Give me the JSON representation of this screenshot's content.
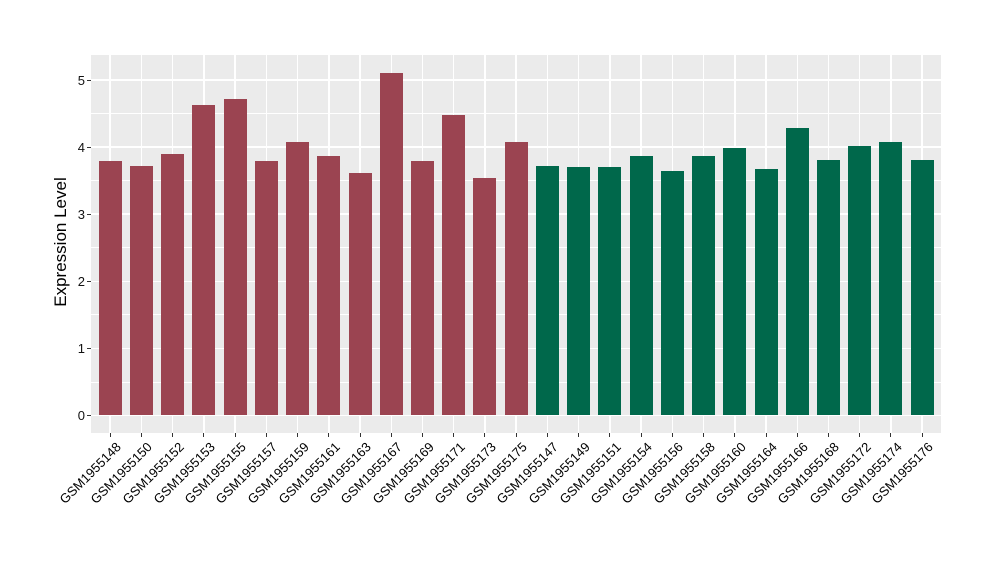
{
  "figure": {
    "panel_background": "#EBEBEB",
    "grid_color": "#FFFFFF",
    "tick_color": "#333333",
    "background": "#FFFFFF"
  },
  "chart_data": {
    "type": "bar",
    "title": "",
    "xlabel": "",
    "ylabel": "Expression Level",
    "ylim": [
      0,
      5.37
    ],
    "yticks": [
      0,
      1,
      2,
      3,
      4,
      5
    ],
    "grid": true,
    "legend": "none",
    "groups": [
      {
        "name": "group-1",
        "color": "#9B4451",
        "bars": [
          {
            "label": "GSM1955148",
            "value": 3.79
          },
          {
            "label": "GSM1955150",
            "value": 3.72
          },
          {
            "label": "GSM1955152",
            "value": 3.89
          },
          {
            "label": "GSM1955153",
            "value": 4.62
          },
          {
            "label": "GSM1955155",
            "value": 4.71
          },
          {
            "label": "GSM1955157",
            "value": 3.8
          },
          {
            "label": "GSM1955159",
            "value": 4.07
          },
          {
            "label": "GSM1955161",
            "value": 3.86
          },
          {
            "label": "GSM1955163",
            "value": 3.62
          },
          {
            "label": "GSM1955167",
            "value": 5.11
          },
          {
            "label": "GSM1955169",
            "value": 3.79
          },
          {
            "label": "GSM1955171",
            "value": 4.48
          },
          {
            "label": "GSM1955173",
            "value": 3.54
          },
          {
            "label": "GSM1955175",
            "value": 4.08
          }
        ]
      },
      {
        "name": "group-2",
        "color": "#00684B",
        "bars": [
          {
            "label": "GSM1955147",
            "value": 3.72
          },
          {
            "label": "GSM1955149",
            "value": 3.7
          },
          {
            "label": "GSM1955151",
            "value": 3.71
          },
          {
            "label": "GSM1955154",
            "value": 3.86
          },
          {
            "label": "GSM1955156",
            "value": 3.65
          },
          {
            "label": "GSM1955158",
            "value": 3.86
          },
          {
            "label": "GSM1955160",
            "value": 3.98
          },
          {
            "label": "GSM1955164",
            "value": 3.68
          },
          {
            "label": "GSM1955166",
            "value": 4.29
          },
          {
            "label": "GSM1955168",
            "value": 3.81
          },
          {
            "label": "GSM1955172",
            "value": 4.02
          },
          {
            "label": "GSM1955174",
            "value": 4.07
          },
          {
            "label": "GSM1955176",
            "value": 3.81
          }
        ]
      }
    ]
  }
}
